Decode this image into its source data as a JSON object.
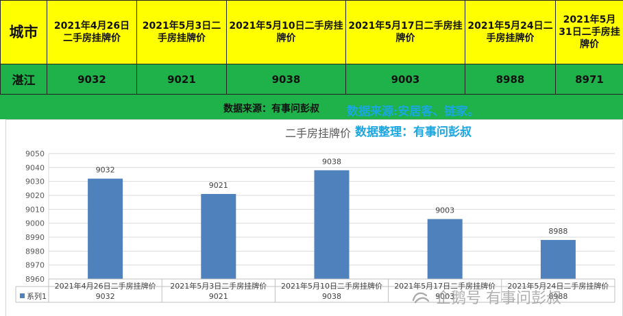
{
  "table": {
    "city_header": "城市",
    "headers": [
      "2021年4月26日二手房挂牌价",
      "2021年5月3日二手房挂牌价",
      "2021年5月10日二手房挂牌价",
      "2021年5月17日二手房挂牌价",
      "2021年5月24日二手房挂牌价",
      "2021年5月31日二手房挂牌价"
    ],
    "city": "湛江",
    "values": [
      "9032",
      "9021",
      "9038",
      "9003",
      "8988",
      "8971"
    ]
  },
  "source_line": "数据来源：有事问彭叔",
  "overlay": {
    "line1": "数据来源:安居客、链家。",
    "line2": "数据整理：有事问彭叔"
  },
  "watermark": "企鹅号 有事问彭叔",
  "colors": {
    "header_bg": "#ffff00",
    "row_bg": "#1fb24a",
    "bar": "#4f81bd",
    "overlay_text": "#1aa6e0"
  },
  "chart_data": {
    "type": "bar",
    "title": "二手房挂牌价",
    "categories": [
      "2021年4月26日二手房挂牌价",
      "2021年5月3日二手房挂牌价",
      "2021年5月10日二手房挂牌价",
      "2021年5月17日二手房挂牌价",
      "2021年5月24日二手房挂牌价"
    ],
    "series": [
      {
        "name": "系列1",
        "values": [
          9032,
          9021,
          9038,
          9003,
          8988
        ]
      }
    ],
    "ylim": [
      8960,
      9050
    ],
    "yticks": [
      8960,
      8970,
      8980,
      8990,
      9000,
      9010,
      9020,
      9030,
      9040,
      9050
    ],
    "grid": true,
    "data_table": true
  }
}
